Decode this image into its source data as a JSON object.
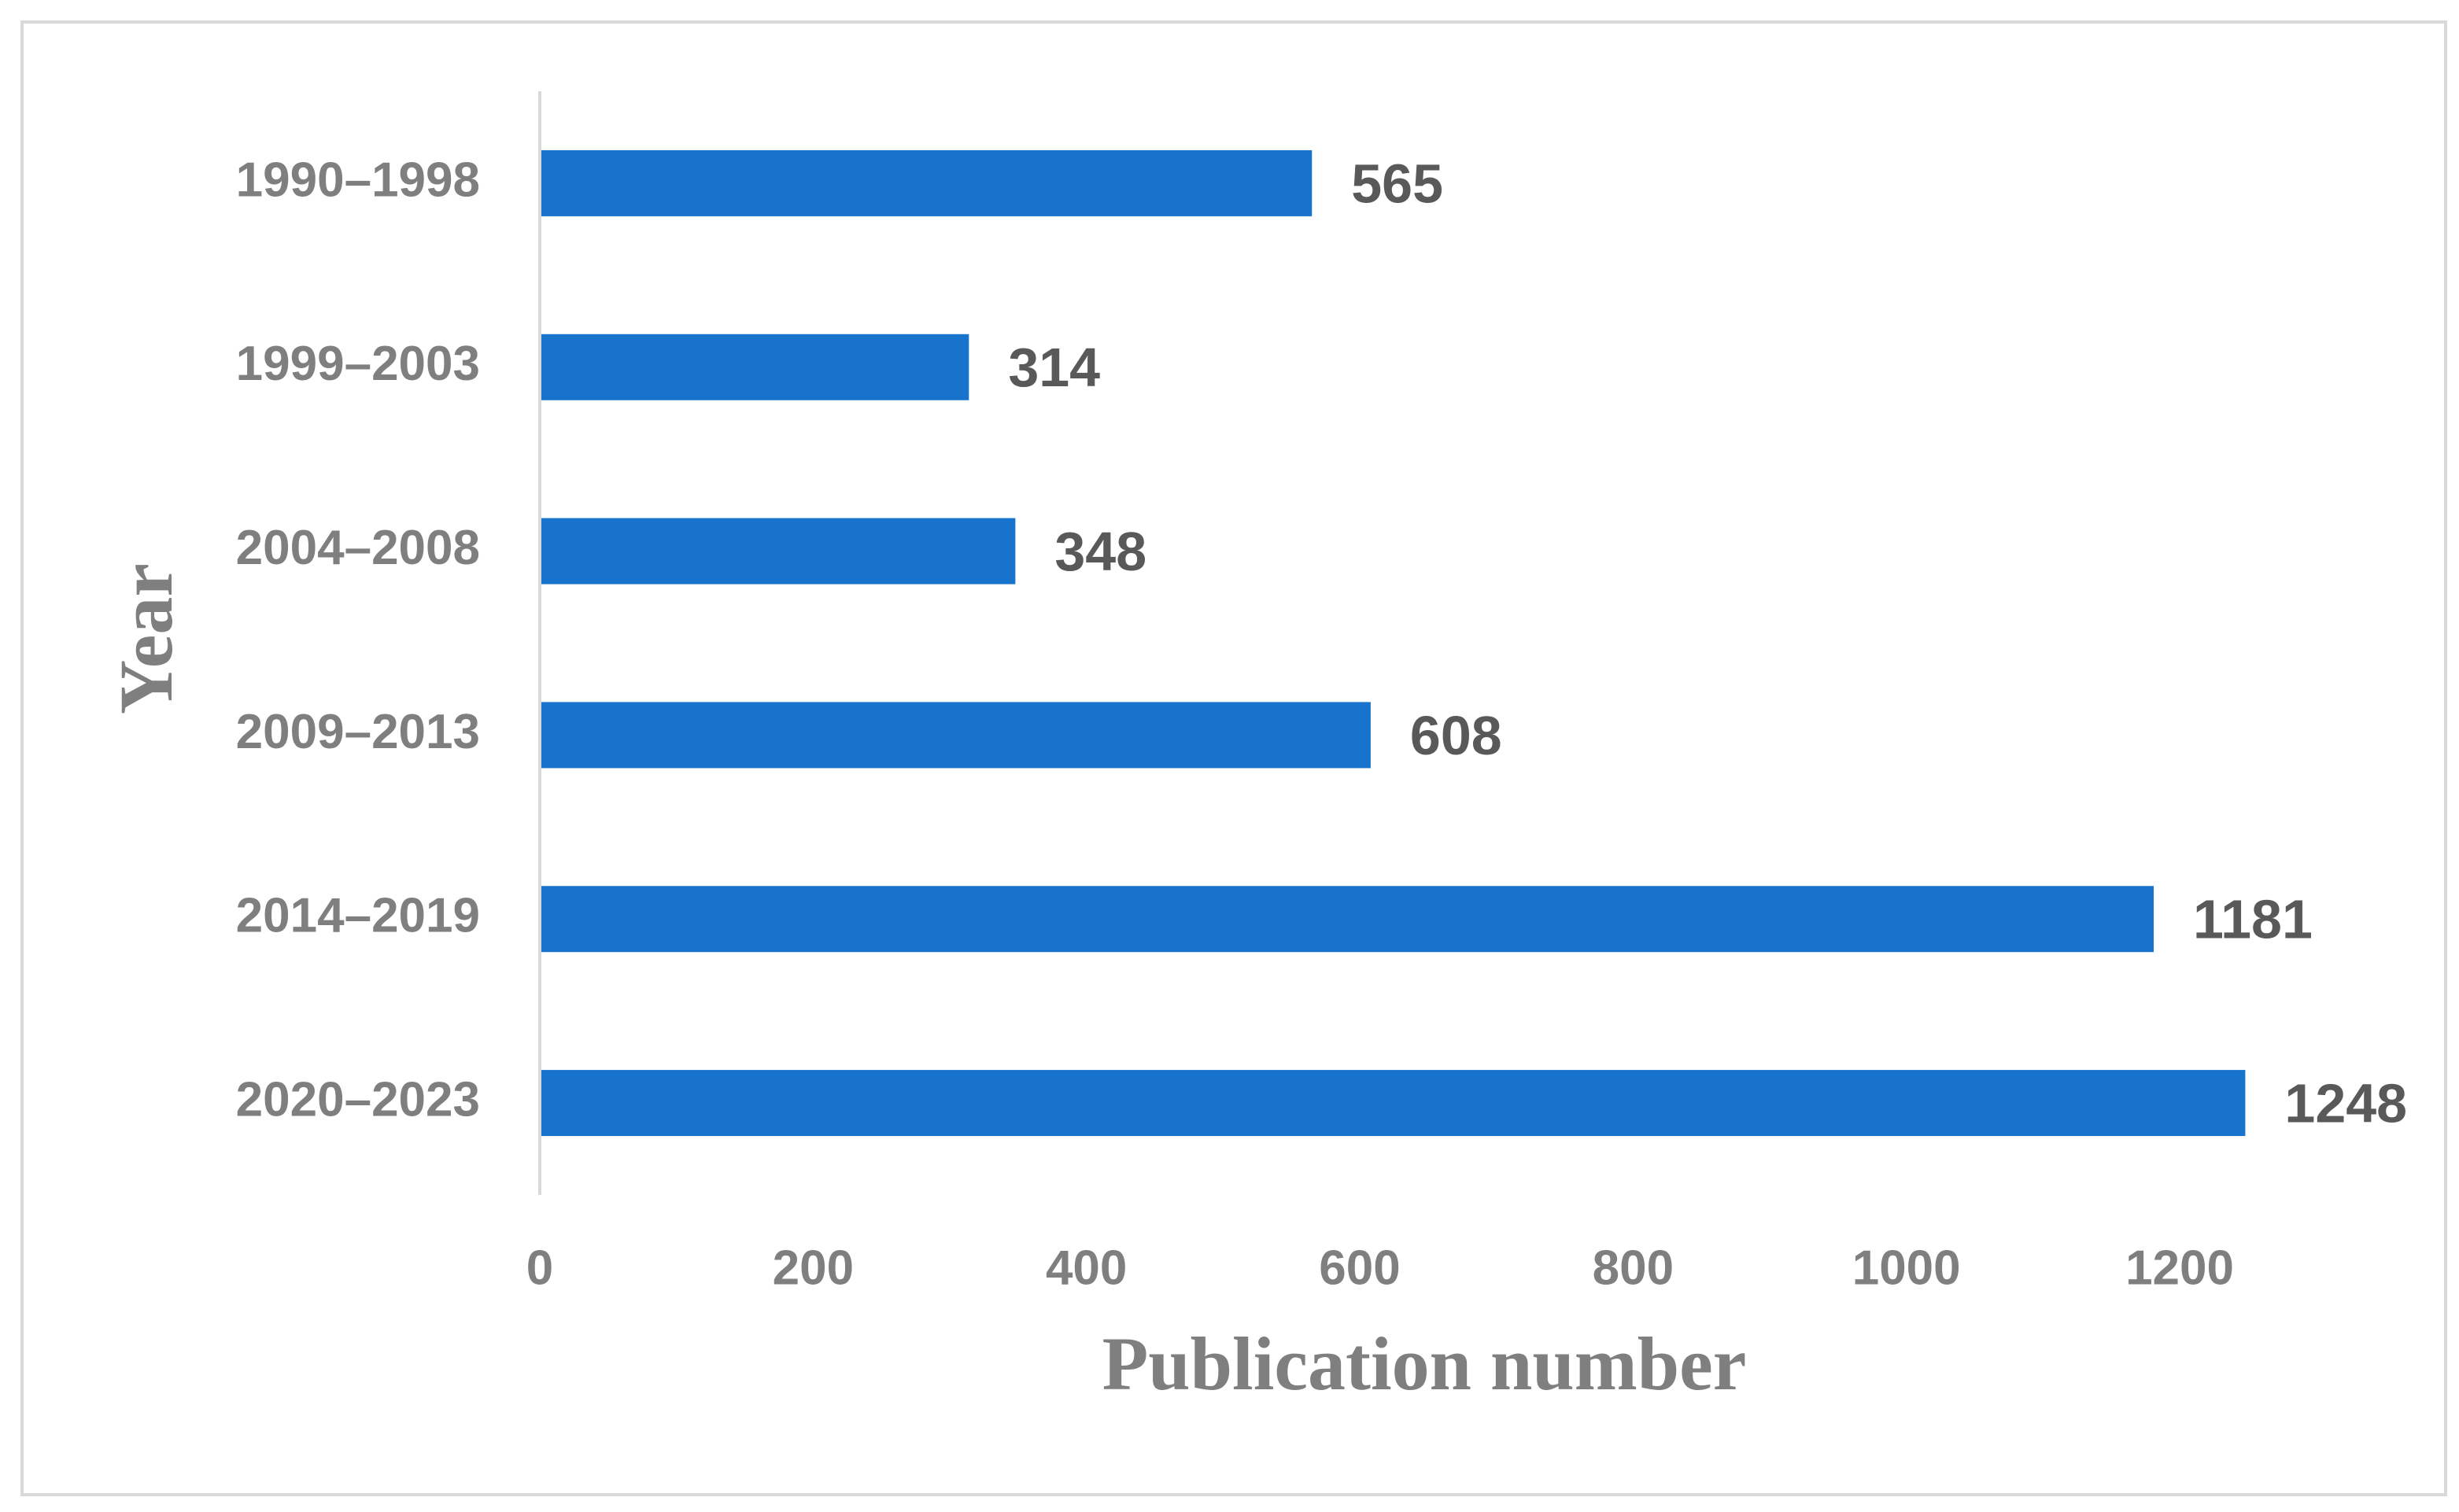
{
  "chart_data": {
    "type": "bar",
    "orientation": "horizontal",
    "xlabel": "Publication number",
    "ylabel": "Year",
    "categories": [
      "1990–1998",
      "1999–2003",
      "2004–2008",
      "2009–2013",
      "2014–2019",
      "2020–2023"
    ],
    "values": [
      565,
      314,
      348,
      608,
      1181,
      1248
    ],
    "color": "#1873cc",
    "xlim": [
      0,
      1300
    ],
    "xticks": [
      0,
      200,
      400,
      600,
      800,
      1000,
      1200
    ],
    "grid": false
  }
}
